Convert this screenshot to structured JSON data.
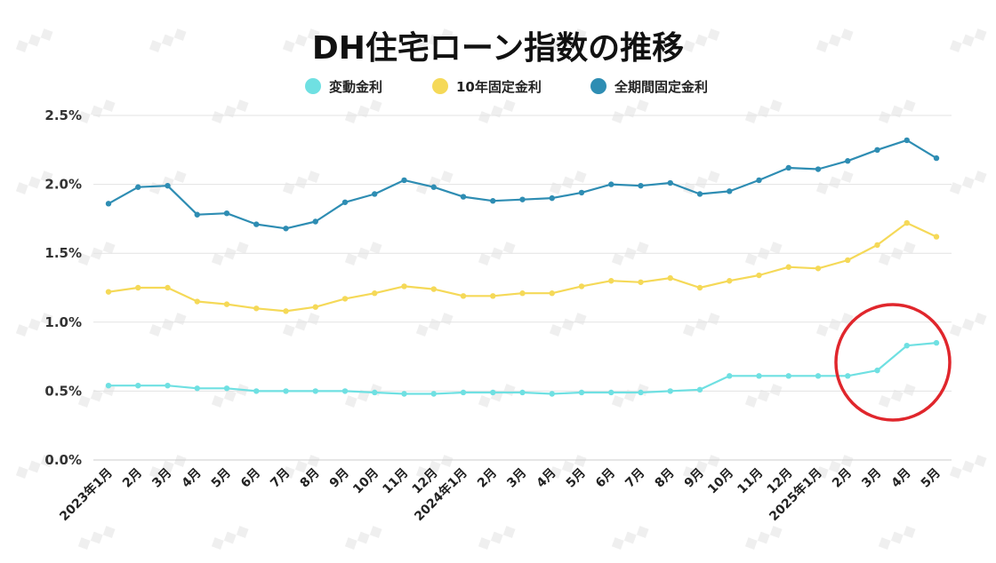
{
  "chart_data": {
    "type": "line",
    "title": "DH住宅ローン指数の推移",
    "xlabel": "",
    "ylabel": "",
    "ylim": [
      0,
      2.5
    ],
    "yticks": [
      "0.0%",
      "0.5%",
      "1.0%",
      "1.5%",
      "2.0%",
      "2.5%"
    ],
    "categories": [
      "2023年1月",
      "2月",
      "3月",
      "4月",
      "5月",
      "6月",
      "7月",
      "8月",
      "9月",
      "10月",
      "11月",
      "12月",
      "2024年1月",
      "2月",
      "3月",
      "4月",
      "5月",
      "6月",
      "7月",
      "8月",
      "9月",
      "10月",
      "11月",
      "12月",
      "2025年1月",
      "2月",
      "3月",
      "4月",
      "5月"
    ],
    "legend_position": "top-center",
    "grid": true,
    "series": [
      {
        "name": "変動金利",
        "color": "#6fe0e2",
        "values": [
          0.54,
          0.54,
          0.54,
          0.52,
          0.52,
          0.5,
          0.5,
          0.5,
          0.5,
          0.49,
          0.48,
          0.48,
          0.49,
          0.49,
          0.49,
          0.48,
          0.49,
          0.49,
          0.49,
          0.5,
          0.51,
          0.61,
          0.61,
          0.61,
          0.61,
          0.61,
          0.65,
          0.83,
          0.85
        ]
      },
      {
        "name": "10年固定金利",
        "color": "#f5d958",
        "values": [
          1.22,
          1.25,
          1.25,
          1.15,
          1.13,
          1.1,
          1.08,
          1.11,
          1.17,
          1.21,
          1.26,
          1.24,
          1.19,
          1.19,
          1.21,
          1.21,
          1.26,
          1.3,
          1.29,
          1.32,
          1.25,
          1.3,
          1.34,
          1.4,
          1.39,
          1.45,
          1.56,
          1.72,
          1.62
        ]
      },
      {
        "name": "全期間固定金利",
        "color": "#2e8db3",
        "values": [
          1.86,
          1.98,
          1.99,
          1.78,
          1.79,
          1.71,
          1.68,
          1.73,
          1.87,
          1.93,
          2.03,
          1.98,
          1.91,
          1.88,
          1.89,
          1.9,
          1.94,
          2.0,
          1.99,
          2.01,
          1.93,
          1.95,
          2.03,
          2.12,
          2.11,
          2.17,
          2.25,
          2.32,
          2.19
        ]
      }
    ],
    "annotations": [
      {
        "type": "circle",
        "color": "#e0262c",
        "around": "2025年3月〜5月 変動金利"
      }
    ]
  }
}
